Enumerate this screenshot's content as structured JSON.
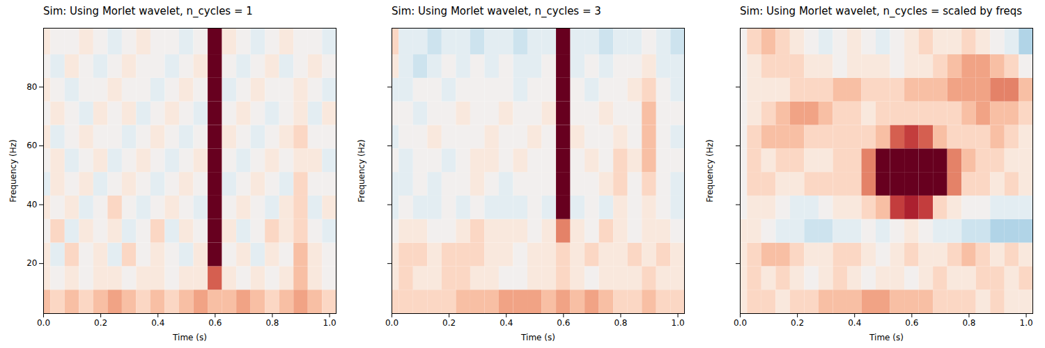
{
  "chart_data": [
    {
      "type": "heatmap",
      "title": "Sim: Using Morlet wavelet, n_cycles = 1",
      "x_label": "Time (s)",
      "y_label": "Frequency (Hz)",
      "xlim": [
        0,
        1.023
      ],
      "ylim": [
        3,
        100
      ],
      "xticks": [
        {
          "value": 0,
          "label": "0.0"
        },
        {
          "value": 0.2,
          "label": "0.2"
        },
        {
          "value": 0.4,
          "label": "0.4"
        },
        {
          "value": 0.6,
          "label": "0.6"
        },
        {
          "value": 0.8,
          "label": "0.8"
        },
        {
          "value": 1,
          "label": "1.0"
        }
      ],
      "yticks": [
        20,
        40,
        60,
        80
      ],
      "zlim": [
        -1,
        1
      ],
      "time_edges": [
        0,
        0.025,
        0.075,
        0.125,
        0.175,
        0.225,
        0.275,
        0.325,
        0.375,
        0.425,
        0.475,
        0.525,
        0.575,
        0.625,
        0.675,
        0.725,
        0.775,
        0.825,
        0.875,
        0.925,
        0.975,
        1.023
      ],
      "freq_edges": [
        3,
        11,
        19,
        27,
        35,
        43,
        51,
        59,
        67,
        75,
        83,
        91,
        100
      ],
      "z": [
        [
          0.3,
          0.2,
          0.3,
          0.2,
          0.3,
          0.4,
          0.3,
          0.2,
          0.3,
          0.2,
          0.3,
          0.4,
          0.3,
          0.3,
          0.4,
          0.3,
          0.2,
          0.3,
          0.4,
          0.3,
          0.2
        ],
        [
          0.1,
          0.0,
          0.1,
          0.0,
          0.1,
          0.1,
          0.0,
          0.1,
          0.1,
          0.0,
          0.1,
          0.1,
          0.6,
          0.1,
          0.0,
          0.1,
          0.0,
          0.1,
          0.3,
          0.1,
          0.0
        ],
        [
          0.1,
          -0.1,
          0.2,
          0.0,
          0.1,
          -0.1,
          0.2,
          0.0,
          0.1,
          0.0,
          -0.1,
          0.1,
          1,
          0.0,
          0.1,
          -0.1,
          0.1,
          0.0,
          0.3,
          0.1,
          0.0
        ],
        [
          0.0,
          0.2,
          -0.1,
          0.1,
          0.0,
          0.1,
          -0.1,
          0.0,
          0.2,
          -0.1,
          0.1,
          0.0,
          1,
          0.1,
          -0.1,
          0.0,
          0.2,
          0.1,
          0.2,
          0.0,
          -0.1
        ],
        [
          0.1,
          0.0,
          0.1,
          -0.1,
          0.0,
          0.2,
          0.0,
          -0.1,
          0.0,
          0.1,
          0.0,
          -0.1,
          1,
          0.0,
          0.1,
          0.0,
          -0.1,
          0.1,
          0.2,
          -0.1,
          0.1
        ],
        [
          -0.1,
          0.1,
          0.0,
          0.1,
          -0.1,
          0.0,
          0.1,
          0.0,
          -0.1,
          0.0,
          0.1,
          0.0,
          1,
          -0.1,
          0.0,
          0.1,
          0.0,
          -0.1,
          0.2,
          0.0,
          0.0
        ],
        [
          0.0,
          0.1,
          -0.1,
          0.0,
          0.1,
          -0.1,
          0.0,
          0.1,
          0.0,
          -0.1,
          0.0,
          0.1,
          1,
          0.0,
          -0.1,
          0.0,
          0.1,
          0.0,
          0.1,
          0.1,
          -0.1
        ],
        [
          0.1,
          -0.1,
          0.0,
          0.1,
          0.0,
          0.0,
          -0.1,
          0.0,
          0.1,
          0.0,
          -0.1,
          0.0,
          1,
          0.1,
          0.0,
          -0.1,
          0.0,
          0.1,
          0.2,
          0.0,
          0.0
        ],
        [
          0.0,
          0.1,
          0.0,
          -0.1,
          0.1,
          0.0,
          0.1,
          -0.1,
          0.0,
          0.1,
          0.0,
          -0.1,
          1,
          0.0,
          0.1,
          0.0,
          -0.1,
          0.0,
          0.1,
          -0.1,
          0.1
        ],
        [
          0.1,
          0.0,
          -0.1,
          0.0,
          0.0,
          0.1,
          0.0,
          0.0,
          -0.1,
          0.0,
          0.1,
          0.0,
          1,
          -0.1,
          0.0,
          0.1,
          0.0,
          0.0,
          0.1,
          0.0,
          -0.1
        ],
        [
          0.0,
          -0.1,
          0.1,
          0.0,
          -0.1,
          0.0,
          0.1,
          0.0,
          0.0,
          -0.1,
          0.0,
          0.1,
          1,
          0.0,
          -0.1,
          0.0,
          0.1,
          -0.1,
          0.0,
          0.1,
          0.0
        ],
        [
          0.1,
          0.0,
          0.0,
          0.1,
          0.0,
          -0.1,
          0.0,
          0.1,
          0.0,
          0.0,
          -0.1,
          0.0,
          1,
          0.1,
          0.0,
          -0.1,
          0.0,
          0.1,
          0.0,
          0.0,
          -0.1
        ]
      ]
    },
    {
      "type": "heatmap",
      "title": "Sim: Using Morlet wavelet, n_cycles = 3",
      "x_label": "Time (s)",
      "y_label": "Frequency (Hz)",
      "tick_labels": "x",
      "xlim": [
        0,
        1.023
      ],
      "ylim": [
        3,
        100
      ],
      "xticks": [
        {
          "value": 0,
          "label": "0.0"
        },
        {
          "value": 0.2,
          "label": "0.2"
        },
        {
          "value": 0.4,
          "label": "0.4"
        },
        {
          "value": 0.6,
          "label": "0.6"
        },
        {
          "value": 0.8,
          "label": "0.8"
        },
        {
          "value": 1,
          "label": "1.0"
        }
      ],
      "yticks": [
        20,
        40,
        60,
        80
      ],
      "zlim": [
        -1,
        1
      ],
      "time_edges": [
        0,
        0.025,
        0.075,
        0.125,
        0.175,
        0.225,
        0.275,
        0.325,
        0.375,
        0.425,
        0.475,
        0.525,
        0.575,
        0.625,
        0.675,
        0.725,
        0.775,
        0.825,
        0.875,
        0.925,
        0.975,
        1.023
      ],
      "freq_edges": [
        3,
        11,
        19,
        27,
        35,
        43,
        51,
        59,
        67,
        75,
        83,
        91,
        100
      ],
      "z": [
        [
          0.2,
          0.2,
          0.2,
          0.2,
          0.2,
          0.3,
          0.3,
          0.3,
          0.4,
          0.4,
          0.4,
          0.3,
          0.4,
          0.3,
          0.4,
          0.3,
          0.2,
          0.2,
          0.3,
          0.2,
          0.2
        ],
        [
          0.1,
          0.2,
          0.1,
          0.1,
          0.2,
          0.2,
          0.1,
          0.1,
          0.0,
          0.0,
          0.1,
          0.1,
          0.2,
          0.1,
          0.0,
          0.1,
          0.1,
          0.1,
          0.2,
          0.1,
          0.1
        ],
        [
          0.1,
          0.2,
          0.2,
          0.1,
          0.2,
          0.2,
          0.2,
          0.1,
          0.1,
          0.0,
          0.1,
          0.1,
          0.2,
          0.1,
          0.2,
          0.1,
          0.1,
          0.2,
          0.1,
          0.2,
          0.1
        ],
        [
          0.0,
          0.1,
          0.1,
          0.0,
          0.0,
          0.1,
          0.2,
          0.1,
          0.1,
          0.1,
          0.0,
          0.1,
          0.5,
          0.1,
          0.0,
          0.2,
          0.1,
          0.0,
          0.1,
          0.1,
          0.0
        ],
        [
          -0.1,
          0.0,
          -0.1,
          -0.1,
          0.0,
          -0.1,
          0.0,
          -0.1,
          -0.1,
          -0.1,
          0.0,
          -0.1,
          1,
          -0.1,
          0.0,
          -0.1,
          0.1,
          0.0,
          0.1,
          0.0,
          -0.1
        ],
        [
          -0.1,
          -0.1,
          0.0,
          -0.1,
          0.0,
          0.0,
          0.1,
          0.0,
          -0.1,
          0.0,
          0.0,
          0.0,
          1,
          0.0,
          0.0,
          0.1,
          0.2,
          0.0,
          0.2,
          0.0,
          -0.1
        ],
        [
          0.0,
          -0.1,
          0.0,
          0.0,
          -0.1,
          0.0,
          0.1,
          0.1,
          0.0,
          0.1,
          0.0,
          0.0,
          1,
          0.0,
          0.1,
          0.0,
          0.2,
          0.1,
          0.3,
          0.0,
          0.0
        ],
        [
          -0.1,
          0.0,
          0.0,
          0.1,
          0.0,
          0.0,
          0.0,
          0.1,
          0.0,
          0.0,
          0.1,
          0.0,
          1,
          0.1,
          0.0,
          0.0,
          0.1,
          0.0,
          0.3,
          0.0,
          -0.1
        ],
        [
          0.0,
          0.0,
          -0.1,
          0.0,
          0.0,
          0.1,
          0.0,
          0.0,
          0.1,
          0.0,
          0.0,
          0.1,
          1,
          0.0,
          0.0,
          0.1,
          0.0,
          0.0,
          0.3,
          0.0,
          0.0
        ],
        [
          -0.1,
          -0.1,
          0.0,
          0.0,
          -0.1,
          0.0,
          0.0,
          0.0,
          0.0,
          -0.1,
          0.0,
          0.0,
          1,
          0.0,
          -0.1,
          0.0,
          0.0,
          0.1,
          0.2,
          0.0,
          -0.1
        ],
        [
          0.1,
          -0.1,
          -0.2,
          -0.1,
          0.0,
          -0.1,
          0.0,
          -0.1,
          0.0,
          -0.1,
          -0.1,
          0.0,
          1,
          -0.1,
          0.0,
          -0.1,
          0.0,
          0.0,
          0.1,
          -0.1,
          -0.1
        ],
        [
          0.2,
          -0.1,
          -0.1,
          -0.2,
          -0.1,
          -0.1,
          -0.2,
          -0.1,
          -0.1,
          -0.2,
          -0.1,
          -0.1,
          1,
          -0.1,
          -0.1,
          -0.2,
          -0.1,
          -0.1,
          0.0,
          -0.1,
          -0.2
        ]
      ]
    },
    {
      "type": "heatmap",
      "title": "Sim: Using Morlet wavelet, n_cycles = scaled by freqs",
      "x_label": "Time (s)",
      "y_label": "Frequency (Hz)",
      "tick_labels": "x",
      "xlim": [
        0,
        1.023
      ],
      "ylim": [
        3,
        100
      ],
      "xticks": [
        {
          "value": 0,
          "label": "0.0"
        },
        {
          "value": 0.2,
          "label": "0.2"
        },
        {
          "value": 0.4,
          "label": "0.4"
        },
        {
          "value": 0.6,
          "label": "0.6"
        },
        {
          "value": 0.8,
          "label": "0.8"
        },
        {
          "value": 1,
          "label": "1.0"
        }
      ],
      "yticks": [
        20,
        40,
        60,
        80
      ],
      "zlim": [
        -1,
        1
      ],
      "time_edges": [
        0,
        0.025,
        0.075,
        0.125,
        0.175,
        0.225,
        0.275,
        0.325,
        0.375,
        0.425,
        0.475,
        0.525,
        0.575,
        0.625,
        0.675,
        0.725,
        0.775,
        0.825,
        0.875,
        0.925,
        0.975,
        1.023
      ],
      "freq_edges": [
        3,
        11,
        19,
        27,
        35,
        43,
        51,
        59,
        67,
        75,
        83,
        91,
        100
      ],
      "z": [
        [
          0.1,
          0.2,
          0.2,
          0.1,
          0.2,
          0.2,
          0.3,
          0.3,
          0.3,
          0.4,
          0.4,
          0.3,
          0.3,
          0.3,
          0.2,
          0.2,
          0.2,
          0.1,
          0.2,
          0.1,
          0.1
        ],
        [
          0.1,
          0.2,
          0.1,
          0.2,
          0.1,
          0.0,
          0.1,
          0.2,
          0.1,
          0.0,
          0.1,
          0.1,
          0.0,
          0.1,
          0.2,
          0.1,
          0.1,
          0.2,
          0.2,
          0.1,
          0.2
        ],
        [
          0.1,
          0.2,
          0.3,
          0.3,
          0.2,
          0.1,
          0.1,
          0.2,
          0.2,
          0.1,
          0.0,
          0.1,
          0.2,
          0.1,
          0.1,
          0.2,
          0.3,
          0.2,
          0.1,
          0.2,
          0.1
        ],
        [
          0.1,
          0.1,
          0.0,
          -0.1,
          -0.1,
          -0.2,
          -0.2,
          -0.1,
          -0.1,
          0.0,
          -0.1,
          0.0,
          0.1,
          0.0,
          -0.1,
          -0.1,
          -0.2,
          -0.2,
          -0.3,
          -0.3,
          -0.3
        ],
        [
          0.0,
          0.1,
          0.1,
          0.0,
          -0.1,
          -0.1,
          0.0,
          0.1,
          0.1,
          0.2,
          0.3,
          0.7,
          0.8,
          0.7,
          0.2,
          0.1,
          0.0,
          0.0,
          -0.1,
          -0.1,
          -0.1
        ],
        [
          0.0,
          0.2,
          0.2,
          0.1,
          0.1,
          0.2,
          0.2,
          0.2,
          0.2,
          0.5,
          1,
          1,
          1,
          1,
          1,
          0.5,
          0.2,
          0.2,
          0.1,
          0.2,
          0.1
        ],
        [
          0.0,
          0.2,
          0.1,
          0.2,
          0.2,
          0.1,
          0.1,
          0.2,
          0.2,
          0.5,
          1,
          1,
          1,
          1,
          1,
          0.5,
          0.3,
          0.2,
          0.2,
          0.1,
          0.1
        ],
        [
          0.0,
          0.2,
          0.3,
          0.3,
          0.3,
          0.2,
          0.2,
          0.2,
          0.2,
          0.2,
          0.3,
          0.6,
          0.7,
          0.6,
          0.3,
          0.2,
          0.2,
          0.2,
          0.3,
          0.2,
          0.1
        ],
        [
          0.0,
          0.1,
          0.2,
          0.3,
          0.4,
          0.4,
          0.3,
          0.2,
          0.2,
          0.1,
          0.2,
          0.2,
          0.2,
          0.2,
          0.2,
          0.2,
          0.3,
          0.4,
          0.3,
          0.3,
          0.2
        ],
        [
          0.0,
          0.1,
          0.1,
          0.1,
          0.2,
          0.2,
          0.2,
          0.3,
          0.3,
          0.2,
          0.2,
          0.2,
          0.3,
          0.3,
          0.3,
          0.4,
          0.4,
          0.4,
          0.5,
          0.5,
          0.3
        ],
        [
          0.0,
          0.1,
          0.2,
          0.2,
          0.2,
          0.1,
          0.1,
          0.0,
          0.1,
          0.1,
          0.1,
          0.0,
          0.1,
          0.1,
          0.2,
          0.3,
          0.4,
          0.4,
          0.3,
          0.2,
          0.0
        ],
        [
          0.0,
          0.2,
          0.3,
          0.2,
          0.1,
          0.0,
          -0.1,
          0.0,
          0.1,
          0.0,
          -0.1,
          0.0,
          0.1,
          0.2,
          0.1,
          0.1,
          0.2,
          0.1,
          0.0,
          -0.1,
          -0.3
        ]
      ]
    }
  ]
}
